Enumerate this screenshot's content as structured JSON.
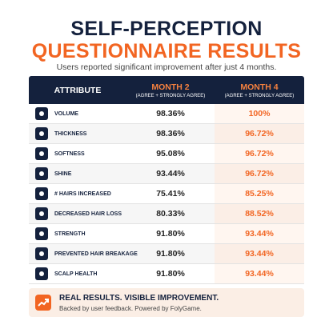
{
  "header": {
    "title_line1": "SELF-PERCEPTION",
    "title_line2": "QUESTIONNAIRE RESULTS",
    "subtitle": "Users reported significant improvement after just 4 months."
  },
  "table": {
    "columns": [
      {
        "label": "ATTRIBUTE"
      },
      {
        "label": "MONTH 2",
        "sublabel": "(AGREE + STRONGLY AGREE)"
      },
      {
        "label": "MONTH 4",
        "sublabel": "(AGREE + STRONGLY AGREE)"
      }
    ],
    "rows": [
      [
        "VOLUME",
        "98.36%",
        "100%"
      ],
      [
        "THICKNESS",
        "98.36%",
        "96.72%"
      ],
      [
        "SOFTNESS",
        "95.08%",
        "96.72%"
      ],
      [
        "SHINE",
        "93.44%",
        "96.72%"
      ],
      [
        "# HAIRS INCREASED",
        "75.41%",
        "85.25%"
      ],
      [
        "DECREASED HAIR LOSS",
        "80.33%",
        "88.52%"
      ],
      [
        "STRENGTH",
        "91.80%",
        "93.44%"
      ],
      [
        "PREVENTED HAIR BREAKAGE",
        "91.80%",
        "93.44%"
      ],
      [
        "SCALP HEALTH",
        "91.80%",
        "93.44%"
      ]
    ]
  },
  "footer": {
    "headline": "REAL RESULTS. VISIBLE IMPROVEMENT.",
    "note": "Backed by user feedback. Powered by FolyGame."
  }
}
